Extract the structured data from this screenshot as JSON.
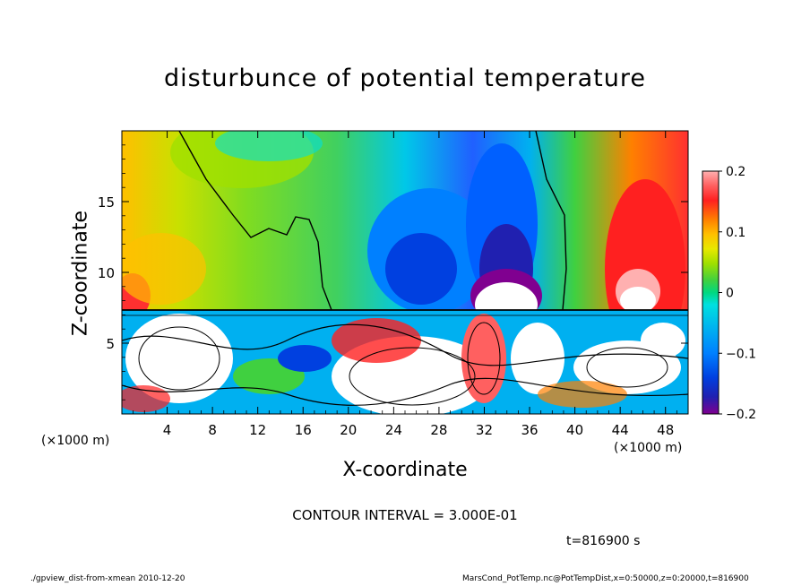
{
  "title": "disturbunce of potential temperature",
  "xlabel": "X-coordinate",
  "ylabel": "Z-coordinate",
  "x_unit_left": "(×1000 m)",
  "x_unit_right": "(×1000 m)",
  "contour_text": "CONTOUR INTERVAL = 3.000E-01",
  "time_text": "t=816900 s",
  "footer_left": "./gpview_dist-from-xmean  2010-12-20",
  "footer_right": "MarsCond_PotTemp.nc@PotTempDist,x=0:50000,z=0:20000,t=816900",
  "chart_data": {
    "type": "heatmap",
    "title": "disturbunce of potential temperature",
    "xlabel": "X-coordinate",
    "ylabel": "Z-coordinate",
    "xlim": [
      0,
      50
    ],
    "ylim": [
      0,
      20
    ],
    "x_ticks": [
      4,
      8,
      12,
      16,
      20,
      24,
      28,
      32,
      36,
      40,
      44,
      48
    ],
    "y_ticks": [
      5,
      10,
      15
    ],
    "colorbar": {
      "range": [
        -0.2,
        0.2
      ],
      "ticks": [
        "0.2",
        "0.1",
        "0",
        "−0.1",
        "−0.2"
      ],
      "tick_values": [
        0.2,
        0.1,
        0,
        -0.1,
        -0.2
      ],
      "colors": [
        "#ffb0b0",
        "#ff6060",
        "#ff2020",
        "#ff8000",
        "#ffc000",
        "#e8e800",
        "#a0e000",
        "#40d040",
        "#00d880",
        "#00e0e0",
        "#00b0f0",
        "#0080ff",
        "#0040e0",
        "#2020b0",
        "#800090"
      ]
    },
    "contour_interval": "3.000E-01",
    "time": "t=816900 s"
  }
}
